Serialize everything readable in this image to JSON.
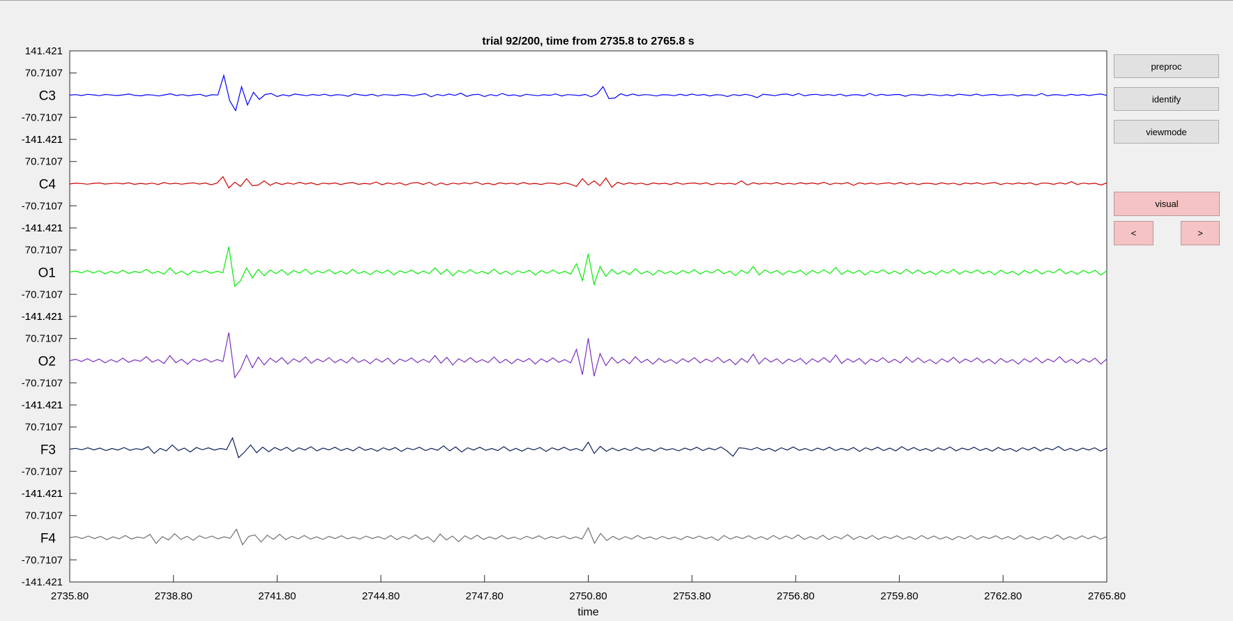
{
  "figure": {
    "title": "trial 92/200, time from 2735.8 to 2765.8 s",
    "xlabel": "time"
  },
  "buttons": {
    "preproc": "preproc",
    "identify": "identify",
    "viewmode": "viewmode",
    "visual": "visual",
    "prev": "<",
    "next": ">"
  },
  "chart_data": {
    "type": "line",
    "title": "trial 92/200, time from 2735.8 to 2765.8 s",
    "xlabel": "time",
    "ylabel": "",
    "xlim": [
      2735.8,
      2765.8
    ],
    "x_ticks": [
      "2735.80",
      "2738.80",
      "2741.80",
      "2744.80",
      "2747.80",
      "2750.80",
      "2753.80",
      "2756.80",
      "2759.80",
      "2762.80",
      "2765.80"
    ],
    "channel_tick_labels": [
      "141.421",
      "70.7107",
      "-70.7107",
      "-141.421"
    ],
    "channel_range": [
      -141.421,
      141.421
    ],
    "series": [
      {
        "name": "C3",
        "color": "#0000ff",
        "amplitude": 0.45,
        "samples": [
          0,
          4,
          -3,
          6,
          2,
          -4,
          5,
          1,
          -3,
          2,
          8,
          -2,
          -5,
          3,
          1,
          -6,
          2,
          10,
          -3,
          4,
          -5,
          2,
          6,
          -8,
          3,
          1,
          140,
          -40,
          -110,
          60,
          -70,
          20,
          -30,
          5,
          12,
          -10,
          3,
          -6,
          8,
          2,
          -4,
          5,
          -2,
          7,
          -5,
          3,
          1,
          -8,
          9,
          2,
          -3,
          6,
          -7,
          4,
          1,
          -3,
          5,
          2,
          -6,
          3,
          10,
          -12,
          5,
          -4,
          8,
          -2,
          14,
          -9,
          3,
          6,
          -10,
          4,
          -5,
          12,
          -3,
          2,
          -8,
          6,
          1,
          -4,
          3,
          -2,
          9,
          -6,
          4,
          1,
          -3,
          5,
          -12,
          8,
          60,
          -25,
          -20,
          10,
          -5,
          8,
          -3,
          4,
          1,
          -6,
          3,
          2,
          -4,
          6,
          -3,
          8,
          -2,
          5,
          -6,
          3,
          1,
          -10,
          4,
          -3,
          6,
          -2,
          -18,
          6,
          2,
          -4,
          5,
          8,
          -3,
          12,
          -5,
          3,
          6,
          -2,
          4,
          -3,
          7,
          -6,
          2,
          3,
          -5,
          12,
          -4,
          6,
          -2,
          3,
          5,
          -8,
          4,
          2,
          -3,
          6,
          1,
          -4,
          3,
          -5,
          7,
          2,
          -3,
          8,
          -4,
          2,
          5,
          -3,
          1,
          4,
          -6,
          3,
          2,
          -4,
          12,
          -5,
          3,
          2,
          -4,
          6,
          -2,
          5,
          -3,
          4,
          8,
          -2
        ]
      },
      {
        "name": "C4",
        "color": "#cc0000",
        "amplitude": 0.45,
        "samples": [
          -2,
          3,
          1,
          -4,
          2,
          5,
          -3,
          1,
          4,
          -2,
          6,
          -5,
          2,
          -3,
          4,
          -6,
          8,
          -2,
          3,
          -4,
          2,
          6,
          -3,
          5,
          -8,
          4,
          50,
          -30,
          10,
          -20,
          35,
          -15,
          -10,
          20,
          -12,
          8,
          -6,
          5,
          -4,
          10,
          -3,
          6,
          -8,
          4,
          -2,
          5,
          -6,
          3,
          8,
          -5,
          2,
          -3,
          12,
          -8,
          5,
          -4,
          6,
          -10,
          4,
          8,
          -6,
          10,
          -12,
          5,
          -8,
          4,
          -3,
          6,
          -2,
          12,
          -5,
          3,
          -8,
          6,
          -2,
          4,
          -5,
          8,
          -3,
          2,
          -6,
          4,
          3,
          -5,
          6,
          -4,
          -20,
          35,
          -10,
          20,
          -15,
          40,
          -25,
          10,
          -5,
          6,
          -3,
          4,
          -8,
          5,
          -2,
          3,
          -6,
          8,
          -4,
          2,
          5,
          -3,
          6,
          -8,
          4,
          -2,
          3,
          -5,
          20,
          -10,
          6,
          -3,
          4,
          -2,
          8,
          -5,
          3,
          -4,
          6,
          -2,
          5,
          -3,
          10,
          -6,
          4,
          -2,
          8,
          -12,
          6,
          -3,
          5,
          -4,
          2,
          6,
          -3,
          8,
          -5,
          4,
          -6,
          3,
          2,
          -5,
          6,
          -3,
          4,
          -8,
          5,
          -2,
          6,
          -4,
          3,
          8,
          -6,
          4,
          -3,
          5,
          -2,
          6,
          -8,
          4,
          3,
          -5,
          6,
          -3,
          14,
          -6,
          4,
          -2,
          3,
          -10,
          5
        ]
      },
      {
        "name": "O1",
        "color": "#00ee00",
        "amplitude": 0.45,
        "samples": [
          0,
          8,
          -5,
          12,
          -6,
          10,
          -12,
          6,
          -8,
          14,
          -10,
          5,
          -3,
          20,
          -8,
          6,
          -15,
          30,
          -12,
          8,
          -20,
          10,
          -5,
          12,
          -8,
          6,
          -4,
          180,
          -100,
          -60,
          30,
          -40,
          20,
          -25,
          15,
          -10,
          18,
          -20,
          12,
          -8,
          22,
          -15,
          10,
          -6,
          18,
          -12,
          8,
          -14,
          20,
          -10,
          6,
          -18,
          12,
          -8,
          15,
          -20,
          10,
          -5,
          16,
          -12,
          8,
          -10,
          30,
          -15,
          20,
          -25,
          12,
          -8,
          18,
          -10,
          6,
          -12,
          22,
          -14,
          8,
          -18,
          10,
          -6,
          14,
          -20,
          12,
          -8,
          16,
          -10,
          6,
          -14,
          60,
          -60,
          130,
          -90,
          40,
          -30,
          20,
          -15,
          10,
          -18,
          24,
          -12,
          8,
          -20,
          14,
          -10,
          6,
          -16,
          12,
          -8,
          18,
          -14,
          10,
          -6,
          20,
          -12,
          8,
          -24,
          14,
          -10,
          40,
          -20,
          16,
          -8,
          12,
          -18,
          10,
          -6,
          14,
          -20,
          12,
          -8,
          18,
          -10,
          34,
          -16,
          12,
          -8,
          14,
          -20,
          10,
          -6,
          18,
          -12,
          8,
          -14,
          22,
          -10,
          16,
          -12,
          6,
          -18,
          12,
          -8,
          20,
          -14,
          10,
          -6,
          16,
          -12,
          8,
          -18,
          14,
          -10,
          6,
          -20,
          12,
          -8,
          18,
          -14,
          10,
          -6,
          24,
          -12,
          8,
          -16,
          12,
          -8,
          14,
          -20,
          10
        ]
      },
      {
        "name": "O2",
        "color": "#7b2fbe",
        "amplitude": 0.45,
        "samples": [
          0,
          10,
          -6,
          14,
          -8,
          12,
          -15,
          8,
          -10,
          18,
          -12,
          6,
          -4,
          28,
          -10,
          8,
          -20,
          36,
          -14,
          10,
          -25,
          12,
          -6,
          14,
          -10,
          8,
          -6,
          200,
          -120,
          -60,
          40,
          -50,
          25,
          -30,
          18,
          -12,
          22,
          -24,
          14,
          -10,
          26,
          -18,
          12,
          -8,
          22,
          -14,
          10,
          -16,
          24,
          -12,
          8,
          -22,
          14,
          -10,
          18,
          -24,
          12,
          -6,
          20,
          -14,
          10,
          -12,
          36,
          -18,
          24,
          -30,
          14,
          -10,
          22,
          -12,
          8,
          -14,
          26,
          -16,
          10,
          -22,
          12,
          -8,
          16,
          -24,
          14,
          -10,
          20,
          -12,
          8,
          -16,
          80,
          -100,
          160,
          -110,
          50,
          -35,
          24,
          -18,
          12,
          -22,
          28,
          -14,
          10,
          -24,
          16,
          -12,
          8,
          -20,
          14,
          -10,
          22,
          -16,
          12,
          -8,
          24,
          -14,
          10,
          -28,
          16,
          -12,
          46,
          -24,
          20,
          -10,
          14,
          -22,
          12,
          -8,
          16,
          -24,
          14,
          -10,
          22,
          -12,
          40,
          -20,
          14,
          -10,
          16,
          -24,
          12,
          -8,
          22,
          -14,
          10,
          -16,
          26,
          -12,
          20,
          -14,
          8,
          -22,
          14,
          -10,
          24,
          -16,
          12,
          -8,
          20,
          -14,
          10,
          -22,
          16,
          -12,
          8,
          -24,
          14,
          -10,
          22,
          -16,
          12,
          -8,
          28,
          -14,
          10,
          -20,
          14,
          -10,
          18,
          -24,
          12
        ]
      },
      {
        "name": "F3",
        "color": "#0a1f5c",
        "amplitude": 0.45,
        "samples": [
          0,
          6,
          -4,
          10,
          -5,
          8,
          -10,
          5,
          -6,
          12,
          -8,
          4,
          -3,
          18,
          -30,
          6,
          -12,
          30,
          -10,
          8,
          -20,
          12,
          -4,
          10,
          -6,
          5,
          -3,
          80,
          -60,
          -20,
          30,
          -25,
          15,
          -18,
          12,
          -8,
          14,
          -16,
          10,
          -6,
          18,
          -12,
          8,
          -5,
          14,
          -10,
          6,
          -12,
          16,
          -8,
          5,
          -14,
          10,
          -6,
          12,
          -16,
          8,
          -4,
          14,
          -10,
          6,
          -8,
          24,
          -12,
          16,
          -20,
          10,
          -6,
          14,
          -8,
          5,
          -10,
          18,
          -12,
          6,
          -14,
          8,
          -5,
          12,
          -16,
          10,
          -6,
          14,
          -8,
          5,
          -12,
          50,
          -30,
          20,
          -15,
          8,
          -12,
          6,
          -10,
          12,
          -8,
          5,
          -14,
          10,
          -6,
          4,
          -12,
          8,
          -6,
          14,
          -10,
          8,
          -5,
          16,
          -12,
          -50,
          10,
          6,
          -4,
          12,
          -8,
          6,
          -14,
          10,
          -6,
          16,
          -8,
          5,
          -12,
          8,
          -6,
          14,
          -10,
          6,
          -8,
          12,
          -16,
          10,
          -6,
          14,
          -10,
          8,
          -12,
          18,
          -8,
          12,
          -10,
          5,
          -14,
          10,
          -6,
          16,
          -12,
          8,
          -5,
          14,
          -10,
          6,
          -14,
          12,
          -8,
          5,
          -16,
          10,
          -6,
          14,
          -12,
          8,
          -5,
          20,
          -10,
          6,
          -12,
          8,
          -6,
          10,
          -14,
          8
        ]
      },
      {
        "name": "F4",
        "color": "#707070",
        "amplitude": 0.45,
        "samples": [
          0,
          8,
          -6,
          12,
          -6,
          10,
          -14,
          6,
          -8,
          16,
          -10,
          5,
          -4,
          24,
          -40,
          8,
          -16,
          28,
          -12,
          10,
          -18,
          14,
          -5,
          12,
          -8,
          6,
          -4,
          60,
          -50,
          10,
          20,
          -30,
          18,
          -12,
          24,
          -14,
          10,
          -8,
          16,
          -10,
          6,
          -12,
          10,
          -6,
          14,
          -8,
          5,
          -10,
          12,
          -6,
          8,
          -10,
          16,
          -14,
          10,
          -8,
          20,
          -12,
          6,
          -30,
          26,
          -16,
          12,
          -28,
          14,
          -10,
          18,
          -12,
          6,
          -10,
          16,
          -8,
          5,
          -12,
          10,
          -6,
          14,
          -10,
          8,
          -5,
          12,
          -8,
          6,
          -10,
          70,
          -40,
          30,
          -20,
          10,
          -14,
          8,
          -10,
          16,
          -8,
          6,
          -12,
          10,
          -8,
          5,
          -14,
          10,
          -6,
          12,
          -8,
          6,
          -20,
          16,
          -10,
          8,
          -6,
          14,
          -10,
          8,
          -12,
          16,
          -10,
          12,
          -8,
          20,
          -12,
          8,
          -10,
          18,
          -14,
          10,
          -8,
          22,
          -12,
          10,
          -8,
          16,
          -12,
          8,
          -6,
          14,
          -10,
          8,
          -12,
          16,
          -8,
          12,
          -10,
          6,
          -14,
          10,
          -8,
          16,
          -12,
          8,
          -6,
          14,
          -10,
          8,
          -12,
          16,
          -10,
          6,
          -14,
          10,
          -8,
          20,
          -12,
          8,
          -10,
          14,
          -8,
          12,
          -10,
          8
        ]
      }
    ]
  }
}
